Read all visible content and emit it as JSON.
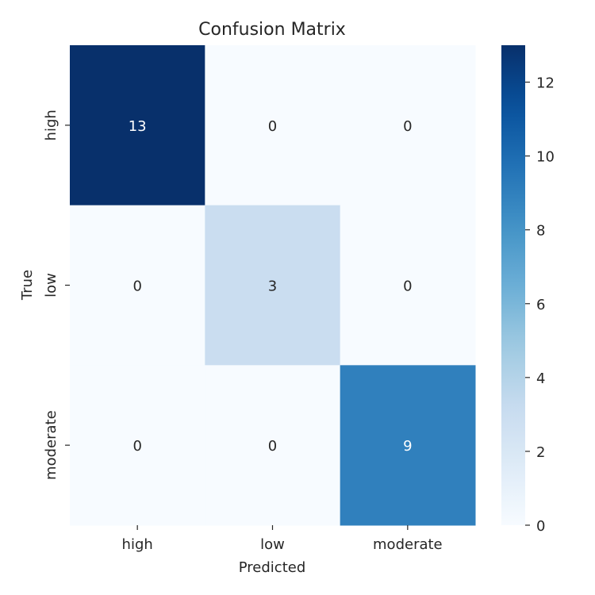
{
  "chart_data": {
    "type": "heatmap",
    "title": "Confusion Matrix",
    "xlabel": "Predicted",
    "ylabel": "True",
    "x_categories": [
      "high",
      "low",
      "moderate"
    ],
    "y_categories": [
      "high",
      "low",
      "moderate"
    ],
    "values": [
      [
        13,
        0,
        0
      ],
      [
        0,
        3,
        0
      ],
      [
        0,
        0,
        9
      ]
    ],
    "colorscale": "Blues",
    "colorbar": {
      "range": [
        0,
        13
      ],
      "ticks": [
        0,
        2,
        4,
        6,
        8,
        10,
        12
      ]
    },
    "colors": {
      "low": "#f7fbff",
      "high": "#08306b",
      "text_dark": "#262626",
      "text_light": "#ffffff"
    }
  }
}
